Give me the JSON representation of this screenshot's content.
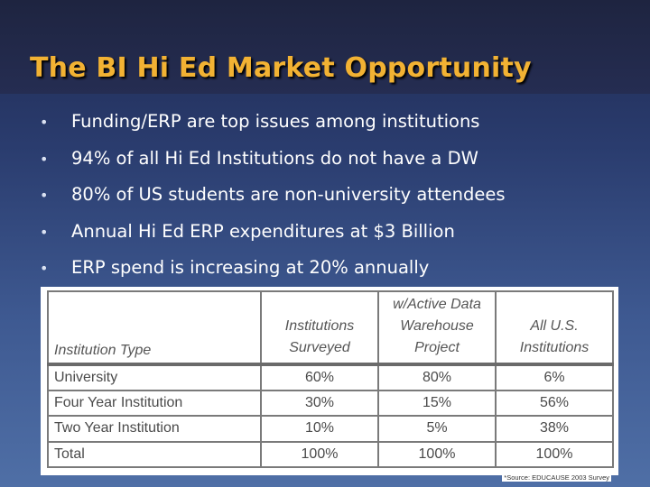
{
  "slide": {
    "title": "The BI Hi Ed Market Opportunity",
    "bullet_symbol": "•",
    "bullets": [
      "Funding/ERP are top issues among institutions",
      "94% of all Hi Ed Institutions do not have a DW",
      "80% of US students are non-university attendees",
      "Annual Hi Ed ERP expenditures at $3 Billion",
      "ERP spend is increasing at 20% annually"
    ]
  },
  "table": {
    "headers": [
      "Institution Type",
      "Institutions Surveyed",
      "w/Active Data Warehouse Project",
      "All U.S. Institutions"
    ],
    "rows": [
      [
        "University",
        "60%",
        "80%",
        "6%"
      ],
      [
        "Four Year Institution",
        "30%",
        "15%",
        "56%"
      ],
      [
        "Two Year Institution",
        "10%",
        "5%",
        "38%"
      ],
      [
        "Total",
        "100%",
        "100%",
        "100%"
      ]
    ],
    "footnote": "*Source: EDUCAUSE 2003 Survey"
  },
  "colors": {
    "title": "#f2b233",
    "bullet_text": "#ffffff",
    "background_top": "#1f2a52",
    "background_bottom": "#4f6fa6"
  }
}
